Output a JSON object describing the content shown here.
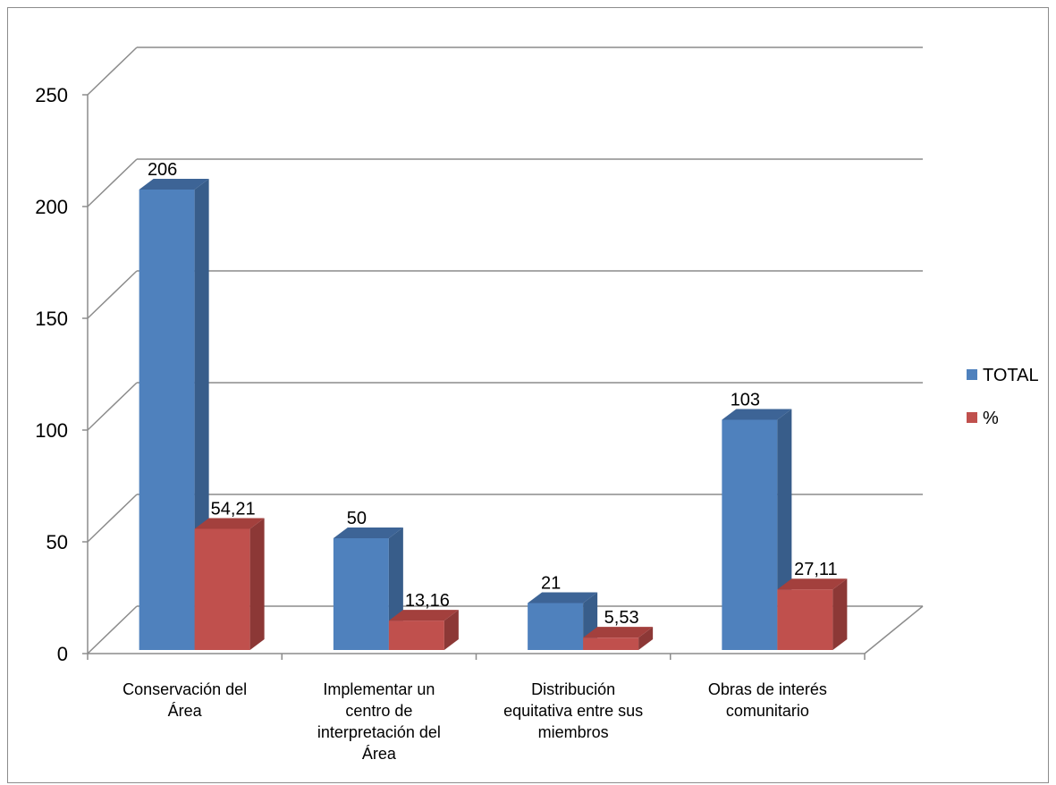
{
  "chart_data": {
    "type": "bar",
    "title": "",
    "xlabel": "",
    "ylabel": "",
    "categories": [
      [
        "Conservación del",
        "Área"
      ],
      [
        "Implementar un",
        "centro  de",
        "interpretación del",
        "Área"
      ],
      [
        "Distribución",
        "equitativa entre sus",
        "miembros"
      ],
      [
        "Obras de interés",
        "comunitario"
      ]
    ],
    "series": [
      {
        "name": "TOTAL",
        "values": [
          206,
          50,
          21,
          103
        ],
        "labels": [
          "206",
          "50",
          "21",
          "103"
        ],
        "color": "#4f81bd",
        "side_color": "#385d8a",
        "top_color": "#3d6496"
      },
      {
        "name": "%",
        "values": [
          54.21,
          13.16,
          5.53,
          27.11
        ],
        "labels": [
          "54,21",
          "13,16",
          "5,53",
          "27,11"
        ],
        "color": "#c0504d",
        "side_color": "#8c3836",
        "top_color": "#a3403d"
      }
    ],
    "ylim": [
      0,
      250
    ],
    "yticks": [
      0,
      50,
      100,
      150,
      200,
      250
    ],
    "grid": true,
    "legend_position": "right",
    "style": "3d-column"
  }
}
